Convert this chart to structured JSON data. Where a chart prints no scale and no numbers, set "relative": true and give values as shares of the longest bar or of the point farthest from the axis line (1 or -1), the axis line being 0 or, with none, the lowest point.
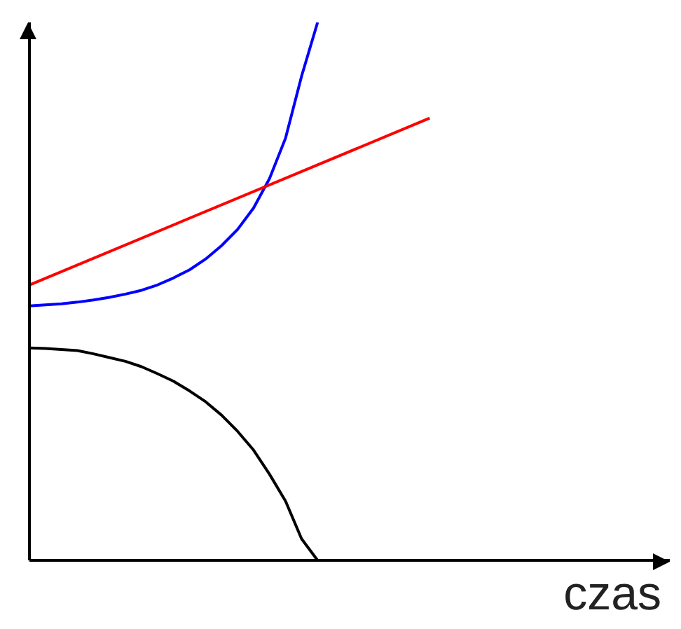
{
  "chart_data": {
    "type": "line",
    "xlabel": "czas",
    "relative": true,
    "marker": "none",
    "legend": false,
    "grid": false,
    "categories": [
      null,
      null,
      null,
      null,
      null,
      null,
      null,
      null,
      null,
      null,
      null,
      null,
      null,
      null,
      null,
      null,
      null,
      null,
      null,
      null,
      null,
      null,
      null,
      null,
      null,
      null,
      null,
      null,
      null,
      null,
      null,
      null,
      null,
      null,
      null,
      null,
      null,
      null,
      null,
      null,
      null
    ],
    "series": [
      {
        "color": "#0000ff",
        "values": [
          0.473,
          0.475,
          0.477,
          0.48,
          0.484,
          0.489,
          0.495,
          0.502,
          0.512,
          0.525,
          0.54,
          0.56,
          0.585,
          0.615,
          0.655,
          0.71,
          0.785,
          0.9,
          1,
          null,
          null,
          null,
          null,
          null,
          null,
          null,
          null,
          null,
          null,
          null,
          null,
          null,
          null,
          null,
          null,
          null,
          null,
          null,
          null,
          null,
          null
        ]
      },
      {
        "color": "#ff0000",
        "values": [
          0.512,
          null,
          null,
          null,
          null,
          null,
          null,
          null,
          null,
          null,
          null,
          null,
          null,
          null,
          null,
          null,
          null,
          null,
          null,
          null,
          null,
          null,
          null,
          null,
          null,
          0.822,
          null,
          null,
          null,
          null,
          null,
          null,
          null,
          null,
          null,
          null,
          null,
          null,
          null,
          null,
          null
        ]
      },
      {
        "color": "#000000",
        "values": [
          0.395,
          0.394,
          0.392,
          0.39,
          0.384,
          0.377,
          0.37,
          0.36,
          0.347,
          0.333,
          0.315,
          0.295,
          0.27,
          0.24,
          0.205,
          0.16,
          0.11,
          0.04,
          0,
          null,
          null,
          null,
          null,
          null,
          null,
          null,
          null,
          null,
          null,
          null,
          null,
          null,
          null,
          null,
          null,
          null,
          null,
          null,
          null,
          null,
          null
        ]
      }
    ]
  }
}
